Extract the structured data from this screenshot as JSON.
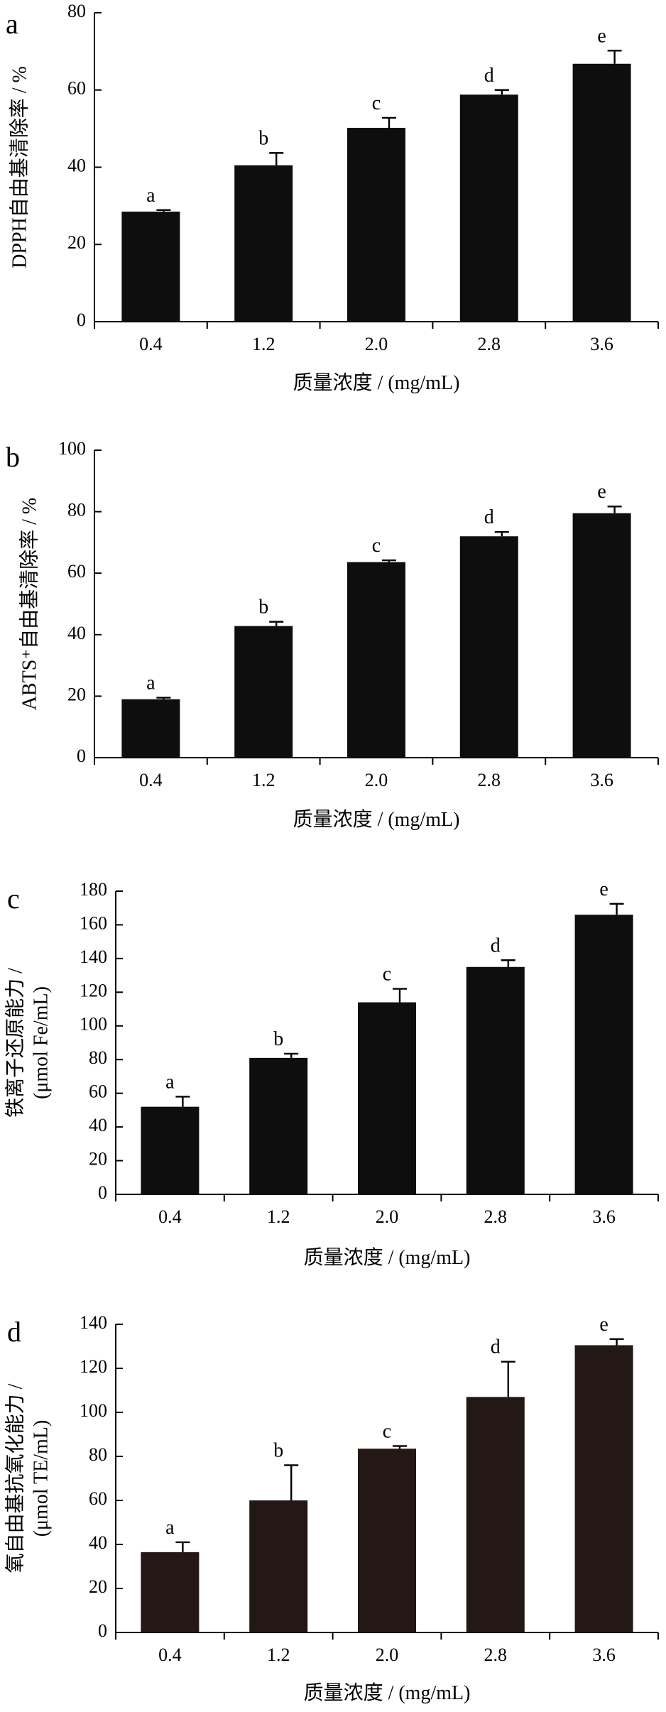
{
  "chart_data": [
    {
      "panel": "a",
      "type": "bar",
      "categories": [
        "0.4",
        "1.2",
        "2.0",
        "2.8",
        "3.6"
      ],
      "values": [
        28.5,
        40.5,
        50.2,
        58.8,
        66.8
      ],
      "errors": [
        0.4,
        3.2,
        2.6,
        1.2,
        3.4
      ],
      "letters": [
        "a",
        "b",
        "c",
        "d",
        "e"
      ],
      "xlabel": "质量浓度 / (mg/mL)",
      "ylabel": [
        "DPPH自由基清除率 / %"
      ],
      "ylim": [
        0,
        80
      ],
      "yticks": [
        0,
        20,
        40,
        60,
        80
      ],
      "bar_color": "#0e0e0e",
      "grid": false
    },
    {
      "panel": "b",
      "type": "bar",
      "categories": [
        "0.4",
        "1.2",
        "2.0",
        "2.8",
        "3.6"
      ],
      "values": [
        19.0,
        42.8,
        63.6,
        72.0,
        79.5
      ],
      "errors": [
        0.5,
        1.4,
        0.6,
        1.4,
        2.2
      ],
      "letters": [
        "a",
        "b",
        "c",
        "d",
        "e"
      ],
      "xlabel": "质量浓度 / (mg/mL)",
      "ylabel": [
        "ABTS⁺自由基清除率 / %"
      ],
      "ylim": [
        0,
        100
      ],
      "yticks": [
        0,
        20,
        40,
        60,
        80,
        100
      ],
      "bar_color": "#0e0e0e",
      "grid": false
    },
    {
      "panel": "c",
      "type": "bar",
      "categories": [
        "0.4",
        "1.2",
        "2.0",
        "2.8",
        "3.6"
      ],
      "values": [
        52,
        81,
        114,
        135,
        166
      ],
      "errors": [
        6,
        2.5,
        8,
        4,
        6.5
      ],
      "letters": [
        "a",
        "b",
        "c",
        "d",
        "e"
      ],
      "xlabel": "质量浓度 / (mg/mL)",
      "ylabel": [
        "铁离子还原能力 /",
        "(μmol Fe/mL)"
      ],
      "ylim": [
        0,
        180
      ],
      "yticks": [
        0,
        20,
        40,
        60,
        80,
        100,
        120,
        140,
        160,
        180
      ],
      "bar_color": "#0e0e0e",
      "grid": false
    },
    {
      "panel": "d",
      "type": "bar",
      "categories": [
        "0.4",
        "1.2",
        "2.0",
        "2.8",
        "3.6"
      ],
      "values": [
        36.5,
        60,
        83.5,
        107,
        130.5
      ],
      "errors": [
        4.5,
        16,
        1.2,
        16,
        2.8
      ],
      "letters": [
        "a",
        "b",
        "c",
        "d",
        "e"
      ],
      "xlabel": "质量浓度 / (mg/mL)",
      "ylabel": [
        "氧自由基抗氧化能力 /",
        "(μmol TE/mL)"
      ],
      "ylim": [
        0,
        140
      ],
      "yticks": [
        0,
        20,
        40,
        60,
        80,
        100,
        120,
        140
      ],
      "bar_color": "#231815",
      "grid": false
    }
  ]
}
